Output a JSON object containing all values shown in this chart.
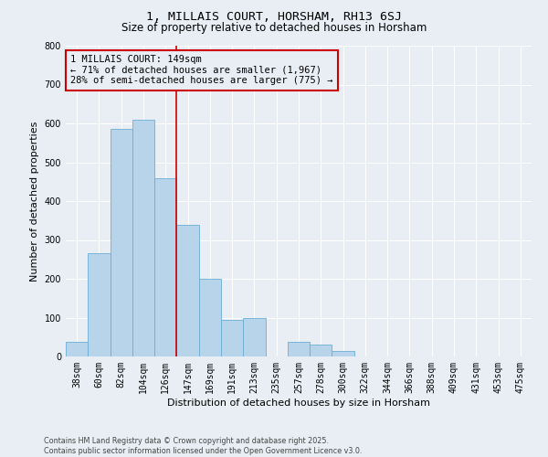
{
  "title": "1, MILLAIS COURT, HORSHAM, RH13 6SJ",
  "subtitle": "Size of property relative to detached houses in Horsham",
  "xlabel": "Distribution of detached houses by size in Horsham",
  "ylabel": "Number of detached properties",
  "bar_labels": [
    "38sqm",
    "60sqm",
    "82sqm",
    "104sqm",
    "126sqm",
    "147sqm",
    "169sqm",
    "191sqm",
    "213sqm",
    "235sqm",
    "257sqm",
    "278sqm",
    "300sqm",
    "322sqm",
    "344sqm",
    "366sqm",
    "388sqm",
    "409sqm",
    "431sqm",
    "453sqm",
    "475sqm"
  ],
  "bar_heights": [
    38,
    265,
    585,
    610,
    460,
    340,
    200,
    95,
    100,
    0,
    38,
    30,
    15,
    0,
    0,
    0,
    0,
    0,
    0,
    0,
    0
  ],
  "bar_color": "#b8d4ea",
  "bar_edge_color": "#6aaed6",
  "ylim": [
    0,
    800
  ],
  "yticks": [
    0,
    100,
    200,
    300,
    400,
    500,
    600,
    700,
    800
  ],
  "vline_x_idx": 5,
  "vline_color": "#cc0000",
  "annotation_title": "1 MILLAIS COURT: 149sqm",
  "annotation_line1": "← 71% of detached houses are smaller (1,967)",
  "annotation_line2": "28% of semi-detached houses are larger (775) →",
  "annotation_box_color": "#cc0000",
  "background_color": "#e8eef4",
  "grid_color": "#ffffff",
  "footer_line1": "Contains HM Land Registry data © Crown copyright and database right 2025.",
  "footer_line2": "Contains public sector information licensed under the Open Government Licence v3.0.",
  "title_fontsize": 9.5,
  "subtitle_fontsize": 8.5,
  "axis_label_fontsize": 8,
  "tick_fontsize": 7,
  "annotation_fontsize": 7.5,
  "footer_fontsize": 5.8
}
